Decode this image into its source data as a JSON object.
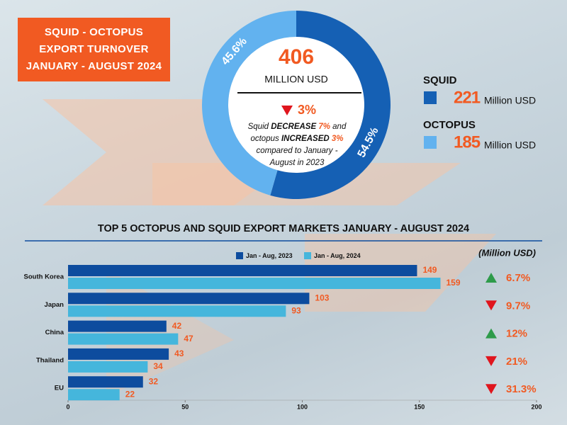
{
  "header": {
    "title_lines": [
      "SQUID - OCTOPUS",
      "EXPORT TURNOVER",
      "JANUARY - AUGUST 2024"
    ]
  },
  "chart_data": [
    {
      "type": "donut",
      "categories": [
        "SQUID",
        "OCTOPUS"
      ],
      "values": [
        54.5,
        45.6
      ],
      "value_labels": [
        "54.5%",
        "45.6%"
      ],
      "colors": [
        "#1560b4",
        "#62b2ef"
      ],
      "amounts": [
        221,
        185
      ],
      "amount_unit": "Million USD",
      "total": 406,
      "total_unit": "MILLION USD",
      "change": "3%",
      "change_direction": "down",
      "note": [
        "Squid ",
        "DECREASE",
        " 7%",
        " and octopus ",
        "INCREASED",
        " 3%",
        " compared to January - August in 2023"
      ]
    },
    {
      "type": "hbar",
      "title": "TOP 5 OCTOPUS AND SQUID EXPORT MARKETS JANUARY - AUGUST 2024",
      "unit_label": "(Million USD)",
      "categories": [
        "South Korea",
        "Japan",
        "China",
        "Thailand",
        "EU"
      ],
      "series": [
        {
          "name": "Jan - Aug, 2023",
          "color": "#0d4c9e",
          "values": [
            149,
            103,
            42,
            43,
            32
          ]
        },
        {
          "name": "Jan - Aug, 2024",
          "color": "#45b6dc",
          "values": [
            159,
            93,
            47,
            34,
            22
          ]
        }
      ],
      "changes": [
        "6.7%",
        "9.7%",
        "12%",
        "21%",
        "31.3%"
      ],
      "change_directions": [
        "up",
        "down",
        "up",
        "down",
        "down"
      ],
      "xlim": [
        0,
        200
      ],
      "xticks": [
        0,
        50,
        100,
        150,
        200
      ]
    }
  ]
}
